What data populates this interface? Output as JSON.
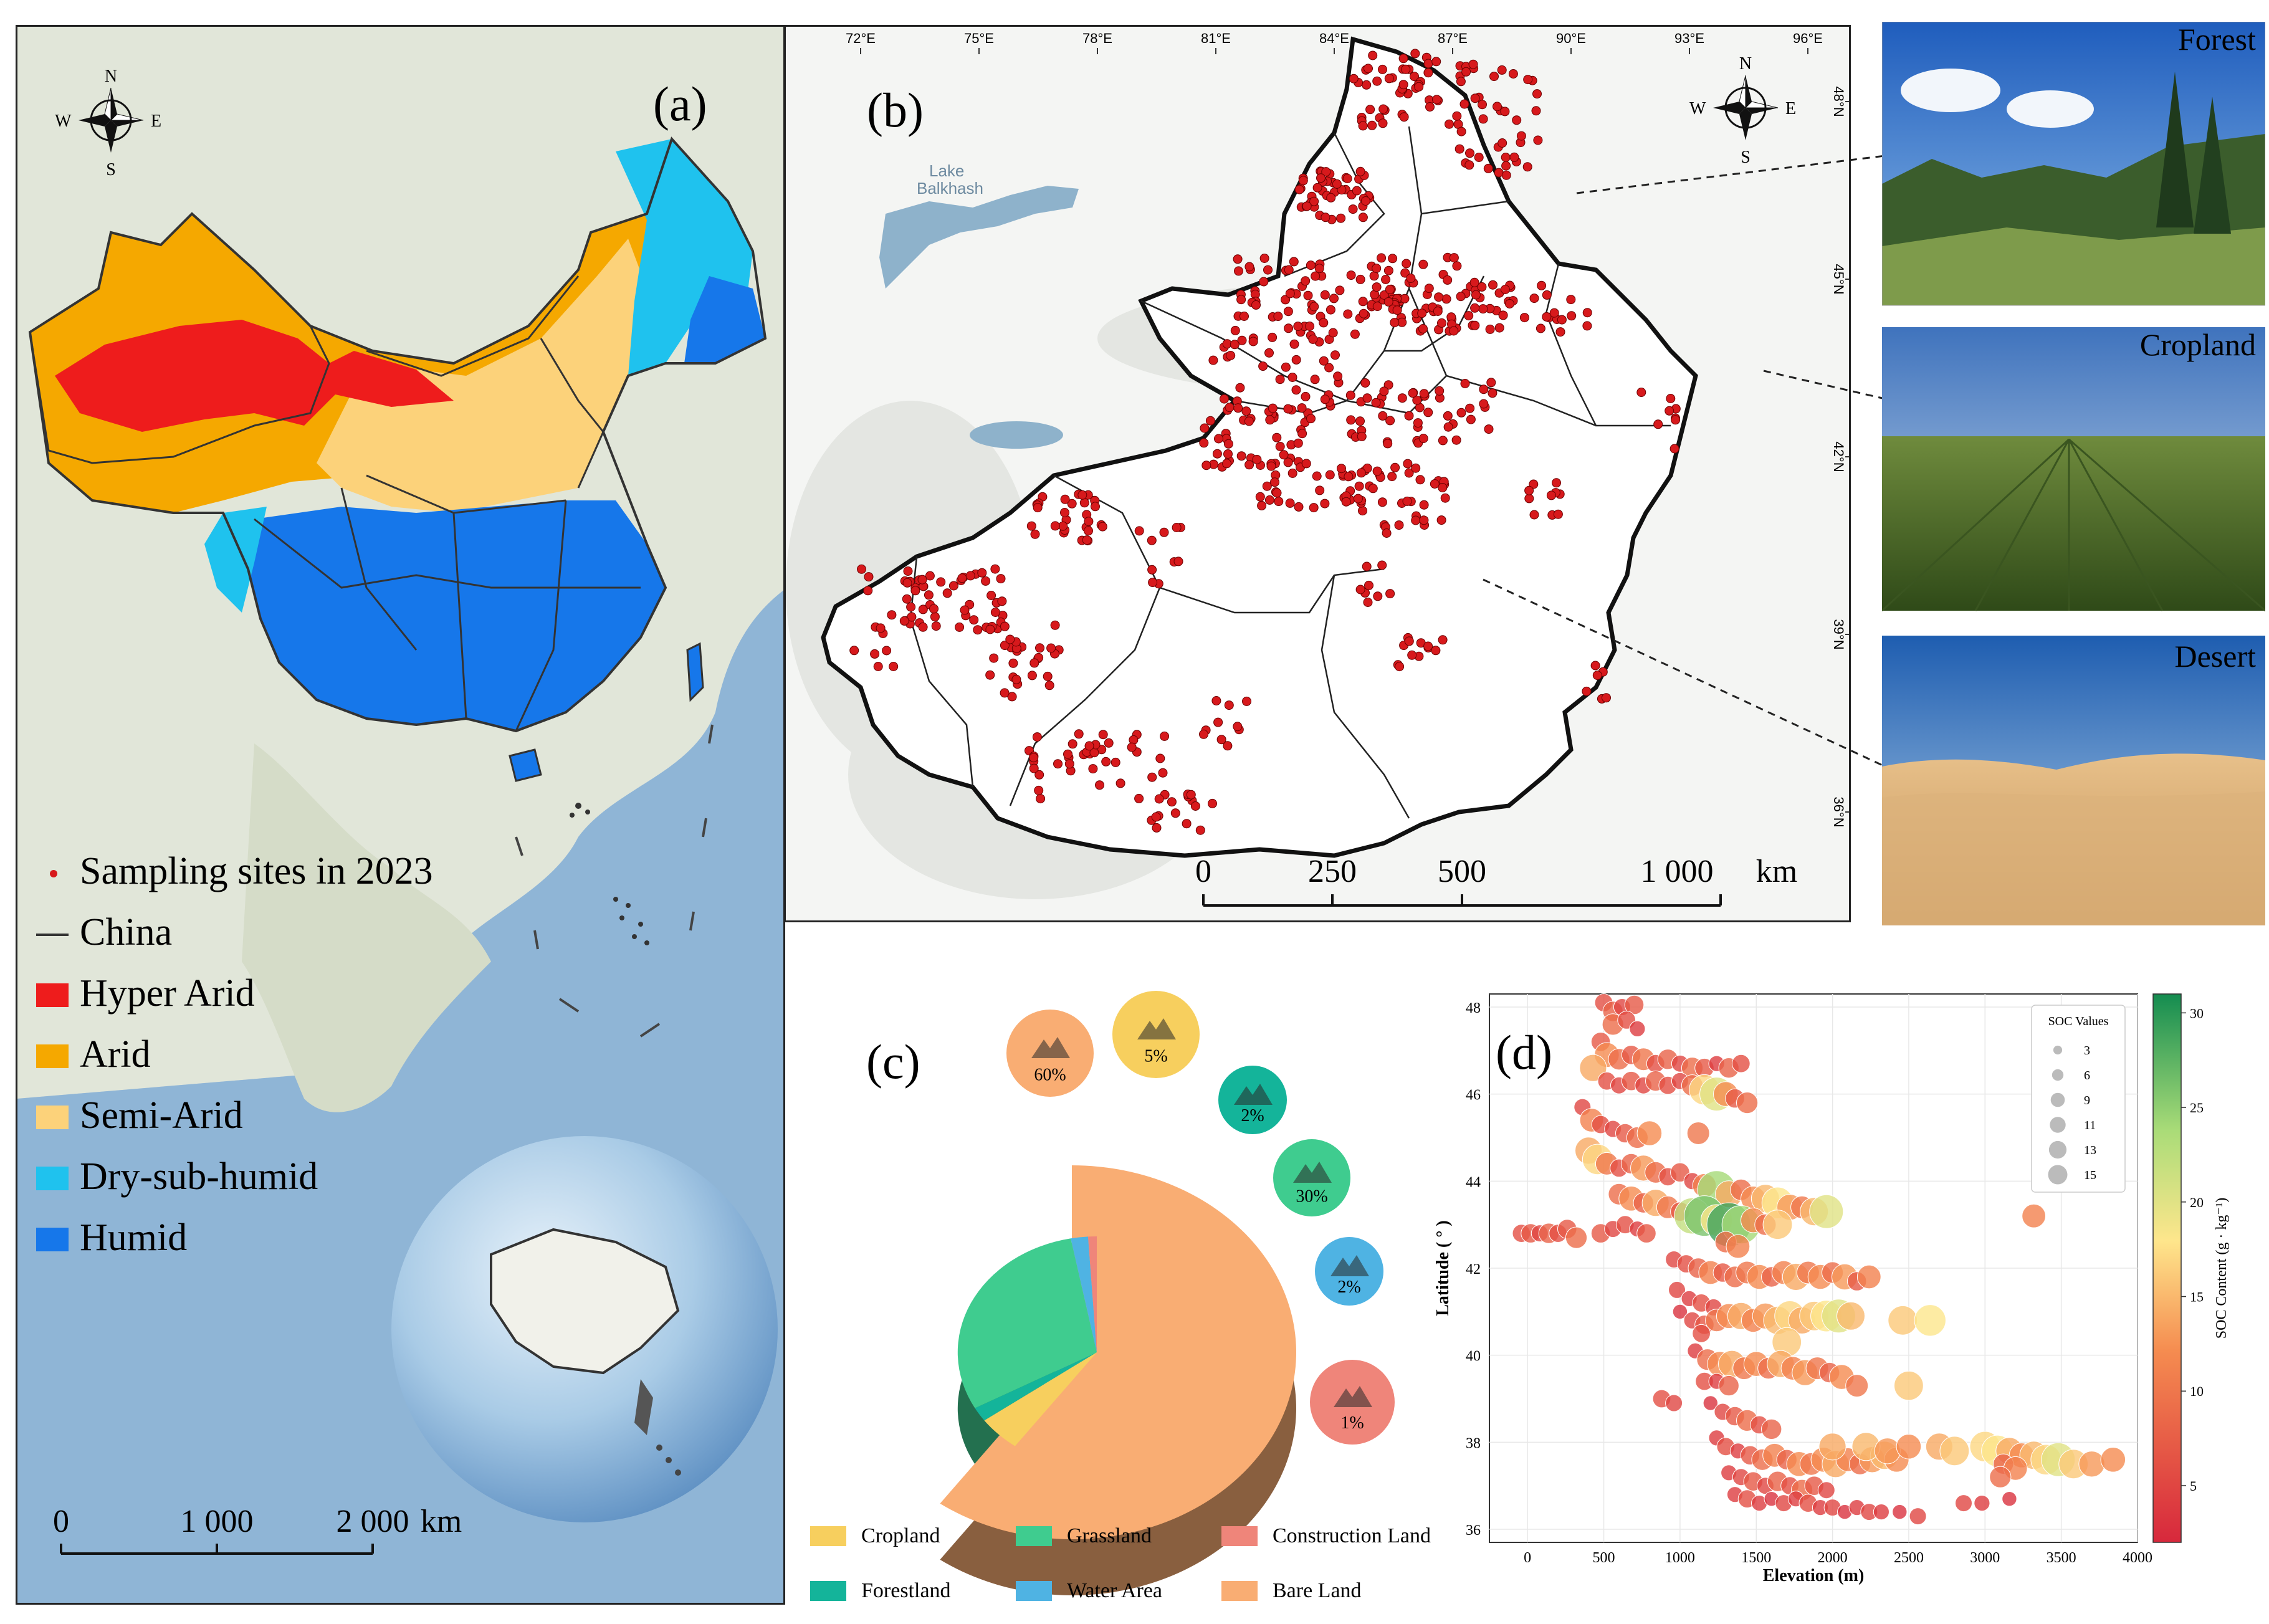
{
  "panel_a": {
    "label": "(a)",
    "compass": {
      "n": "N",
      "s": "S",
      "e": "E",
      "w": "W"
    },
    "legend": [
      {
        "label": "Sampling sites in 2023",
        "symbol": "dot",
        "color": "#d7191c"
      },
      {
        "label": "China",
        "symbol": "line",
        "color": "#333333"
      },
      {
        "label": "Hyper Arid",
        "symbol": "box",
        "color": "#ee1c1c"
      },
      {
        "label": "Arid",
        "symbol": "box",
        "color": "#f5a800"
      },
      {
        "label": "Semi-Arid",
        "symbol": "box",
        "color": "#fcd27a"
      },
      {
        "label": "Dry-sub-humid",
        "symbol": "box",
        "color": "#1fc2ee"
      },
      {
        "label": "Humid",
        "symbol": "box",
        "color": "#1677ea"
      }
    ],
    "scalebar": {
      "ticks": [
        "0",
        "1 000",
        "2 000"
      ],
      "unit": "km"
    }
  },
  "panel_b": {
    "label": "(b)",
    "compass": {
      "n": "N",
      "s": "S",
      "e": "E",
      "w": "W"
    },
    "lake": "Lake\nBalkhash",
    "lake_line1": "Lake",
    "lake_line2": "Balkhash",
    "lon_ticks": [
      "72°E",
      "75°E",
      "78°E",
      "81°E",
      "84°E",
      "87°E",
      "90°E",
      "93°E",
      "96°E"
    ],
    "lat_ticks": [
      "48°N",
      "45°N",
      "42°N",
      "39°N",
      "36°N"
    ],
    "scalebar": {
      "ticks": [
        "0",
        "250",
        "500",
        "1 000"
      ],
      "unit": "km"
    },
    "site_color": "#d7191c"
  },
  "photos": [
    {
      "label": "Forest"
    },
    {
      "label": "Cropland"
    },
    {
      "label": "Desert"
    }
  ],
  "panel_c": {
    "label": "(c)",
    "chart_data": {
      "type": "pie",
      "slices": [
        {
          "name": "Bare Land",
          "percent": 60,
          "color": "#f9ad73"
        },
        {
          "name": "Cropland",
          "percent": 5,
          "color": "#f7cf5e"
        },
        {
          "name": "Forestland",
          "percent": 2,
          "color": "#14b49a"
        },
        {
          "name": "Grassland",
          "percent": 30,
          "color": "#3fcc8f"
        },
        {
          "name": "Water Area",
          "percent": 2,
          "color": "#4fb3e3"
        },
        {
          "name": "Construction Land",
          "percent": 1,
          "color": "#ef857a"
        }
      ],
      "icons": [
        {
          "icon": "mountain-icon",
          "pct": "60%",
          "color": "#f9ad73"
        },
        {
          "icon": "wheat-icon",
          "pct": "5%",
          "color": "#f7cf5e"
        },
        {
          "icon": "tree-icon",
          "pct": "2%",
          "color": "#14b49a"
        },
        {
          "icon": "grass-icon",
          "pct": "30%",
          "color": "#3fcc8f"
        },
        {
          "icon": "water-icon",
          "pct": "2%",
          "color": "#4fb3e3"
        },
        {
          "icon": "building-icon",
          "pct": "1%",
          "color": "#ef857a"
        }
      ],
      "legend": [
        {
          "label": "Cropland",
          "color": "#f7cf5e"
        },
        {
          "label": "Grassland",
          "color": "#3fcc8f"
        },
        {
          "label": "Construction Land",
          "color": "#ef857a"
        },
        {
          "label": "Forestland",
          "color": "#14b49a"
        },
        {
          "label": "Water Area",
          "color": "#4fb3e3"
        },
        {
          "label": "Bare Land",
          "color": "#f9ad73"
        }
      ]
    }
  },
  "panel_d": {
    "label": "(d)",
    "chart_data": {
      "type": "scatter",
      "xlabel": "Elevation (m)",
      "ylabel": "Latitude ( ° )",
      "xlim": [
        -250,
        4000
      ],
      "ylim": [
        35.7,
        48.3
      ],
      "xticks": [
        0,
        500,
        1000,
        1500,
        2000,
        2500,
        3000,
        3500,
        4000
      ],
      "yticks": [
        36,
        38,
        40,
        42,
        44,
        46,
        48
      ],
      "grid": true,
      "colorbar": {
        "label": "SOC Content (g · kg⁻¹)",
        "min": 2,
        "max": 31,
        "ticks": [
          5,
          10,
          15,
          20,
          25,
          30
        ]
      },
      "size_legend": {
        "title": "SOC Values",
        "values": [
          3,
          6,
          9,
          11,
          13,
          15
        ],
        "placement": "top-right"
      },
      "points": [
        [
          500,
          48.1,
          6
        ],
        [
          560,
          47.9,
          8
        ],
        [
          620,
          48.0,
          5
        ],
        [
          700,
          48.05,
          7
        ],
        [
          560,
          47.6,
          9
        ],
        [
          650,
          47.7,
          6
        ],
        [
          720,
          47.5,
          4
        ],
        [
          480,
          47.2,
          7
        ],
        [
          520,
          46.9,
          12
        ],
        [
          600,
          46.8,
          9
        ],
        [
          680,
          46.9,
          7
        ],
        [
          760,
          46.8,
          10
        ],
        [
          840,
          46.7,
          6
        ],
        [
          920,
          46.8,
          8
        ],
        [
          1000,
          46.7,
          5
        ],
        [
          1080,
          46.6,
          9
        ],
        [
          1160,
          46.6,
          7
        ],
        [
          1240,
          46.7,
          4
        ],
        [
          1320,
          46.6,
          8
        ],
        [
          1400,
          46.7,
          6
        ],
        [
          430,
          46.6,
          14
        ],
        [
          520,
          46.3,
          6
        ],
        [
          600,
          46.2,
          5
        ],
        [
          680,
          46.3,
          7
        ],
        [
          760,
          46.2,
          5
        ],
        [
          840,
          46.3,
          8
        ],
        [
          920,
          46.2,
          6
        ],
        [
          1000,
          46.3,
          5
        ],
        [
          1080,
          46.2,
          9
        ],
        [
          1160,
          46.1,
          17
        ],
        [
          1240,
          46.0,
          20
        ],
        [
          1300,
          46.0,
          12
        ],
        [
          1360,
          45.9,
          7
        ],
        [
          1440,
          45.8,
          9
        ],
        [
          360,
          45.7,
          5
        ],
        [
          420,
          45.4,
          11
        ],
        [
          480,
          45.3,
          6
        ],
        [
          560,
          45.2,
          5
        ],
        [
          640,
          45.1,
          7
        ],
        [
          720,
          45.0,
          9
        ],
        [
          800,
          45.1,
          12
        ],
        [
          1120,
          45.1,
          10
        ],
        [
          400,
          44.7,
          14
        ],
        [
          460,
          44.5,
          17
        ],
        [
          520,
          44.4,
          10
        ],
        [
          600,
          44.3,
          6
        ],
        [
          680,
          44.4,
          8
        ],
        [
          760,
          44.3,
          13
        ],
        [
          840,
          44.2,
          9
        ],
        [
          920,
          44.1,
          6
        ],
        [
          1000,
          44.2,
          7
        ],
        [
          1080,
          44.0,
          5
        ],
        [
          1160,
          43.9,
          11
        ],
        [
          1240,
          43.8,
          24
        ],
        [
          1320,
          43.7,
          14
        ],
        [
          1400,
          43.8,
          9
        ],
        [
          1480,
          43.6,
          12
        ],
        [
          1560,
          43.6,
          15
        ],
        [
          1640,
          43.5,
          18
        ],
        [
          1720,
          43.4,
          13
        ],
        [
          1800,
          43.4,
          10
        ],
        [
          1880,
          43.3,
          15
        ],
        [
          1960,
          43.3,
          20
        ],
        [
          600,
          43.7,
          9
        ],
        [
          680,
          43.6,
          12
        ],
        [
          760,
          43.5,
          8
        ],
        [
          840,
          43.5,
          14
        ],
        [
          920,
          43.4,
          10
        ],
        [
          1000,
          43.3,
          7
        ],
        [
          1080,
          43.2,
          22
        ],
        [
          1160,
          43.2,
          26
        ],
        [
          1240,
          43.1,
          18
        ],
        [
          1320,
          43.0,
          29
        ],
        [
          1400,
          43.0,
          24
        ],
        [
          1480,
          43.1,
          12
        ],
        [
          1560,
          43.0,
          9
        ],
        [
          1640,
          43.0,
          16
        ],
        [
          -40,
          42.8,
          6
        ],
        [
          20,
          42.8,
          7
        ],
        [
          80,
          42.8,
          5
        ],
        [
          140,
          42.8,
          8
        ],
        [
          200,
          42.8,
          6
        ],
        [
          260,
          42.9,
          7
        ],
        [
          320,
          42.7,
          9
        ],
        [
          480,
          42.8,
          7
        ],
        [
          560,
          42.9,
          5
        ],
        [
          640,
          43.0,
          6
        ],
        [
          720,
          42.9,
          4
        ],
        [
          780,
          42.8,
          7
        ],
        [
          1300,
          42.6,
          9
        ],
        [
          1380,
          42.5,
          11
        ],
        [
          960,
          42.2,
          5
        ],
        [
          1040,
          42.1,
          6
        ],
        [
          1120,
          42.0,
          8
        ],
        [
          1200,
          41.9,
          11
        ],
        [
          1280,
          41.9,
          7
        ],
        [
          1360,
          41.8,
          9
        ],
        [
          1440,
          41.9,
          10
        ],
        [
          1520,
          41.8,
          12
        ],
        [
          1600,
          41.8,
          8
        ],
        [
          1680,
          41.9,
          11
        ],
        [
          1760,
          41.8,
          14
        ],
        [
          1840,
          41.9,
          10
        ],
        [
          1920,
          41.8,
          12
        ],
        [
          2000,
          41.9,
          9
        ],
        [
          2080,
          41.8,
          13
        ],
        [
          2160,
          41.7,
          7
        ],
        [
          2240,
          41.8,
          11
        ],
        [
          980,
          41.5,
          5
        ],
        [
          1060,
          41.3,
          4
        ],
        [
          1140,
          41.2,
          6
        ],
        [
          1220,
          41.1,
          5
        ],
        [
          1000,
          41.0,
          3
        ],
        [
          1080,
          40.8,
          5
        ],
        [
          1160,
          40.7,
          7
        ],
        [
          1240,
          40.8,
          10
        ],
        [
          1320,
          40.9,
          12
        ],
        [
          1400,
          40.9,
          14
        ],
        [
          1480,
          40.8,
          11
        ],
        [
          1560,
          40.9,
          13
        ],
        [
          1640,
          40.8,
          15
        ],
        [
          1720,
          40.9,
          17
        ],
        [
          1800,
          40.8,
          14
        ],
        [
          1880,
          40.9,
          16
        ],
        [
          1960,
          40.9,
          18
        ],
        [
          2040,
          40.9,
          20
        ],
        [
          2120,
          40.9,
          15
        ],
        [
          2460,
          40.8,
          16
        ],
        [
          2640,
          40.8,
          18
        ],
        [
          1700,
          40.3,
          16
        ],
        [
          1140,
          40.5,
          6
        ],
        [
          1100,
          40.1,
          4
        ],
        [
          1180,
          39.9,
          9
        ],
        [
          1260,
          39.8,
          12
        ],
        [
          1340,
          39.8,
          14
        ],
        [
          1420,
          39.7,
          10
        ],
        [
          1500,
          39.8,
          12
        ],
        [
          1580,
          39.7,
          9
        ],
        [
          1660,
          39.8,
          14
        ],
        [
          1740,
          39.7,
          11
        ],
        [
          1820,
          39.6,
          13
        ],
        [
          1900,
          39.7,
          10
        ],
        [
          1980,
          39.6,
          8
        ],
        [
          2060,
          39.5,
          12
        ],
        [
          1160,
          39.4,
          6
        ],
        [
          1240,
          39.4,
          4
        ],
        [
          1320,
          39.3,
          8
        ],
        [
          2160,
          39.3,
          10
        ],
        [
          2500,
          39.3,
          16
        ],
        [
          880,
          39.0,
          6
        ],
        [
          960,
          38.9,
          5
        ],
        [
          1200,
          38.9,
          3
        ],
        [
          1280,
          38.7,
          5
        ],
        [
          1360,
          38.6,
          7
        ],
        [
          1440,
          38.5,
          9
        ],
        [
          1520,
          38.4,
          6
        ],
        [
          1600,
          38.3,
          8
        ],
        [
          1240,
          38.1,
          4
        ],
        [
          1300,
          37.9,
          6
        ],
        [
          1380,
          37.8,
          4
        ],
        [
          1460,
          37.7,
          7
        ],
        [
          1540,
          37.6,
          9
        ],
        [
          1620,
          37.7,
          11
        ],
        [
          1700,
          37.6,
          8
        ],
        [
          1780,
          37.5,
          12
        ],
        [
          1860,
          37.5,
          10
        ],
        [
          1940,
          37.6,
          12
        ],
        [
          2020,
          37.5,
          14
        ],
        [
          2100,
          37.6,
          11
        ],
        [
          2180,
          37.5,
          9
        ],
        [
          2260,
          37.6,
          13
        ],
        [
          2340,
          37.7,
          15
        ],
        [
          2420,
          37.6,
          12
        ],
        [
          1320,
          37.3,
          4
        ],
        [
          1400,
          37.2,
          5
        ],
        [
          1480,
          37.1,
          7
        ],
        [
          1560,
          37.0,
          5
        ],
        [
          1640,
          37.1,
          8
        ],
        [
          1720,
          37.0,
          6
        ],
        [
          1800,
          36.9,
          9
        ],
        [
          1880,
          37.0,
          7
        ],
        [
          1960,
          36.9,
          5
        ],
        [
          1360,
          36.8,
          4
        ],
        [
          1440,
          36.7,
          6
        ],
        [
          1520,
          36.6,
          4
        ],
        [
          1600,
          36.7,
          3
        ],
        [
          1680,
          36.6,
          5
        ],
        [
          1760,
          36.7,
          4
        ],
        [
          1840,
          36.6,
          6
        ],
        [
          1920,
          36.5,
          4
        ],
        [
          2000,
          36.5,
          5
        ],
        [
          2080,
          36.4,
          3
        ],
        [
          2160,
          36.5,
          4
        ],
        [
          2240,
          36.4,
          5
        ],
        [
          2320,
          36.4,
          4
        ],
        [
          2440,
          36.4,
          3
        ],
        [
          2560,
          36.3,
          5
        ],
        [
          2000,
          37.9,
          14
        ],
        [
          2220,
          37.9,
          15
        ],
        [
          2360,
          37.8,
          13
        ],
        [
          2500,
          37.9,
          12
        ],
        [
          2700,
          37.9,
          14
        ],
        [
          2800,
          37.8,
          16
        ],
        [
          3000,
          37.9,
          17
        ],
        [
          3080,
          37.8,
          18
        ],
        [
          3160,
          37.8,
          14
        ],
        [
          3240,
          37.7,
          12
        ],
        [
          3320,
          37.7,
          15
        ],
        [
          3400,
          37.6,
          17
        ],
        [
          3480,
          37.6,
          20
        ],
        [
          3580,
          37.5,
          16
        ],
        [
          3700,
          37.5,
          13
        ],
        [
          3840,
          37.6,
          12
        ],
        [
          3120,
          37.5,
          8
        ],
        [
          3200,
          37.4,
          11
        ],
        [
          2860,
          36.6,
          5
        ],
        [
          2980,
          36.6,
          4
        ],
        [
          3160,
          36.7,
          3
        ],
        [
          3320,
          43.2,
          11
        ],
        [
          3100,
          37.2,
          9
        ]
      ]
    }
  }
}
